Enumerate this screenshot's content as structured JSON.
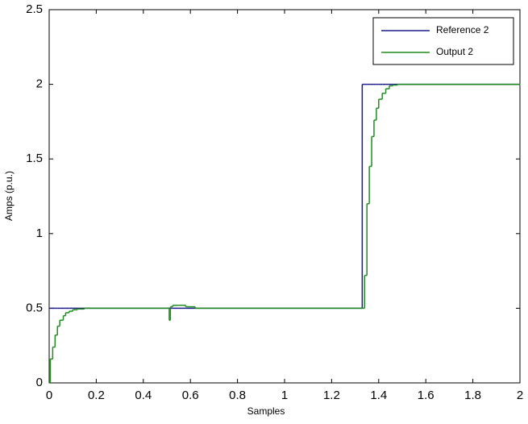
{
  "chart_data": {
    "type": "line",
    "step": "post",
    "xlabel": "Samples",
    "ylabel": "Amps (p.u.)",
    "x": [
      0,
      0.005,
      0.015,
      0.025,
      0.035,
      0.045,
      0.06,
      0.07,
      0.085,
      0.1,
      0.12,
      0.15,
      0.51,
      0.515,
      0.525,
      0.55,
      0.58,
      0.62,
      1.33,
      1.34,
      1.35,
      1.36,
      1.37,
      1.38,
      1.39,
      1.4,
      1.415,
      1.43,
      1.445,
      1.46,
      1.48,
      2
    ],
    "series": [
      {
        "name": "Reference 2",
        "color": "#1a1a8c",
        "values": [
          0.5,
          0.5,
          0.5,
          0.5,
          0.5,
          0.5,
          0.5,
          0.5,
          0.5,
          0.5,
          0.5,
          0.5,
          0.5,
          0.5,
          0.5,
          0.5,
          0.5,
          0.5,
          2,
          2,
          2,
          2,
          2,
          2,
          2,
          2,
          2,
          2,
          2,
          2,
          2,
          2
        ]
      },
      {
        "name": "Output 2",
        "color": "#1e8c1e",
        "values": [
          0,
          0.16,
          0.24,
          0.32,
          0.38,
          0.42,
          0.45,
          0.47,
          0.48,
          0.49,
          0.495,
          0.5,
          0.42,
          0.51,
          0.52,
          0.52,
          0.51,
          0.5,
          0.5,
          0.72,
          1.2,
          1.45,
          1.65,
          1.76,
          1.84,
          1.9,
          1.94,
          1.97,
          1.99,
          1.995,
          2,
          2
        ]
      }
    ],
    "xlim": [
      0,
      2
    ],
    "xticks": [
      0,
      0.2,
      0.4,
      0.6,
      0.8,
      1,
      1.2,
      1.4,
      1.6,
      1.8,
      2
    ],
    "ylim": [
      0,
      2.5
    ],
    "yticks": [
      0,
      0.5,
      1,
      1.5,
      2,
      2.5
    ],
    "legend": "upper-right",
    "grid": false
  }
}
